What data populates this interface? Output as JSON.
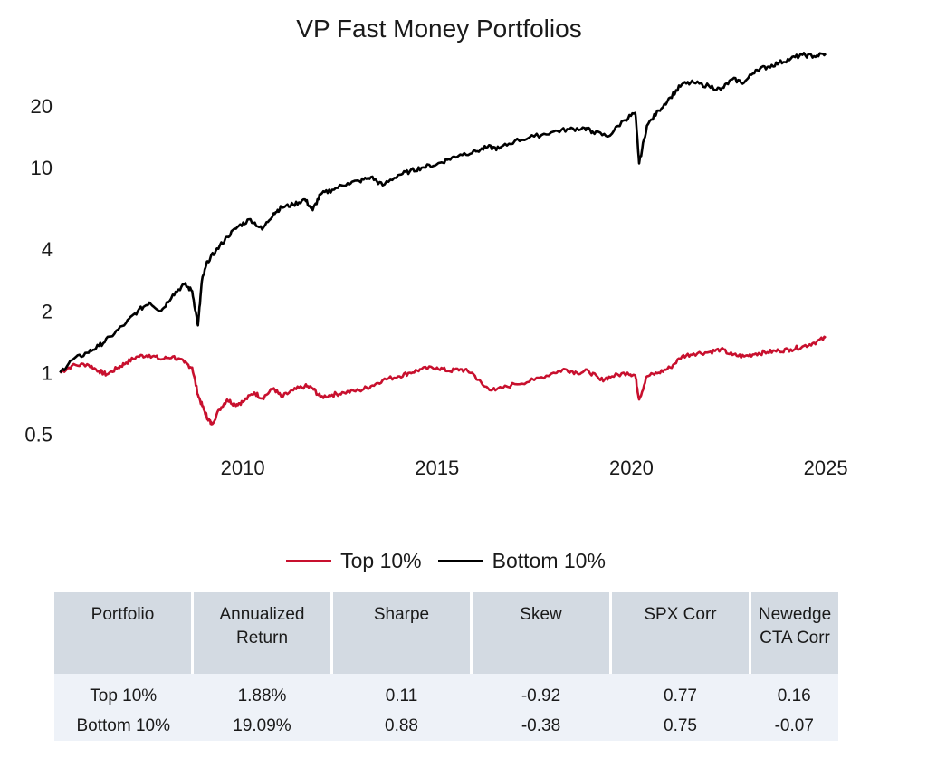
{
  "chart_data": {
    "type": "line",
    "title": "VP Fast Money Portfolios",
    "xlabel": "",
    "ylabel": "",
    "y_scale": "log",
    "xlim": [
      2005.2,
      2025.3
    ],
    "ylim": [
      0.45,
      35
    ],
    "x_ticks": [
      2010,
      2015,
      2020,
      2025
    ],
    "y_ticks": [
      0.5,
      1,
      2,
      4,
      10,
      20
    ],
    "grid": false,
    "legend_position": "bottom",
    "series": [
      {
        "name": "Top 10%",
        "color": "#c8102e",
        "x": [
          2005.3,
          2005.6,
          2006.0,
          2006.3,
          2006.5,
          2006.8,
          2007.0,
          2007.3,
          2007.6,
          2007.9,
          2008.2,
          2008.5,
          2008.7,
          2008.85,
          2009.0,
          2009.1,
          2009.2,
          2009.4,
          2009.6,
          2009.8,
          2010.0,
          2010.3,
          2010.5,
          2010.8,
          2011.0,
          2011.3,
          2011.6,
          2011.8,
          2012.0,
          2012.3,
          2012.6,
          2013.0,
          2013.3,
          2013.6,
          2014.0,
          2014.3,
          2014.6,
          2015.0,
          2015.3,
          2015.6,
          2015.9,
          2016.2,
          2016.5,
          2017.0,
          2017.5,
          2018.0,
          2018.3,
          2018.6,
          2018.9,
          2019.2,
          2019.5,
          2019.9,
          2020.1,
          2020.2,
          2020.4,
          2020.7,
          2021.0,
          2021.3,
          2021.6,
          2022.0,
          2022.3,
          2022.6,
          2022.9,
          2023.2,
          2023.5,
          2023.8,
          2024.1,
          2024.4,
          2024.7,
          2025.0
        ],
        "y": [
          1.0,
          1.08,
          1.1,
          1.02,
          0.98,
          1.06,
          1.12,
          1.2,
          1.22,
          1.16,
          1.2,
          1.12,
          1.06,
          0.78,
          0.66,
          0.6,
          0.56,
          0.66,
          0.74,
          0.7,
          0.72,
          0.8,
          0.75,
          0.84,
          0.76,
          0.82,
          0.86,
          0.84,
          0.76,
          0.78,
          0.8,
          0.82,
          0.86,
          0.92,
          0.96,
          1.0,
          1.04,
          1.06,
          1.02,
          1.04,
          1.0,
          0.86,
          0.82,
          0.88,
          0.92,
          1.0,
          1.04,
          1.0,
          1.02,
          0.92,
          0.96,
          1.0,
          0.97,
          0.74,
          0.96,
          1.0,
          1.06,
          1.2,
          1.24,
          1.26,
          1.3,
          1.22,
          1.2,
          1.24,
          1.26,
          1.28,
          1.3,
          1.34,
          1.4,
          1.48
        ]
      },
      {
        "name": "Bottom 10%",
        "color": "#000000",
        "x": [
          2005.3,
          2005.6,
          2006.0,
          2006.3,
          2006.6,
          2007.0,
          2007.3,
          2007.6,
          2007.9,
          2008.2,
          2008.5,
          2008.7,
          2008.85,
          2008.95,
          2009.1,
          2009.3,
          2009.6,
          2009.9,
          2010.2,
          2010.5,
          2010.8,
          2011.0,
          2011.3,
          2011.6,
          2011.8,
          2012.0,
          2012.3,
          2012.7,
          2013.0,
          2013.3,
          2013.6,
          2014.0,
          2014.3,
          2014.6,
          2015.0,
          2015.3,
          2015.6,
          2016.0,
          2016.3,
          2016.6,
          2017.0,
          2017.5,
          2018.0,
          2018.4,
          2018.8,
          2019.0,
          2019.4,
          2019.8,
          2020.1,
          2020.2,
          2020.4,
          2020.7,
          2021.0,
          2021.3,
          2021.6,
          2022.0,
          2022.3,
          2022.6,
          2022.9,
          2023.2,
          2023.5,
          2023.8,
          2024.1,
          2024.4,
          2024.7,
          2025.0
        ],
        "y": [
          1.0,
          1.15,
          1.25,
          1.35,
          1.5,
          1.75,
          2.0,
          2.2,
          2.0,
          2.4,
          2.7,
          2.5,
          1.7,
          2.8,
          3.5,
          3.9,
          4.6,
          5.2,
          5.6,
          5.0,
          6.0,
          6.4,
          6.6,
          7.0,
          6.2,
          7.4,
          7.8,
          8.4,
          8.6,
          9.0,
          8.2,
          9.2,
          9.6,
          10.0,
          10.4,
          11.0,
          11.6,
          12.0,
          12.6,
          12.4,
          13.5,
          14.2,
          15.0,
          15.4,
          15.6,
          15.0,
          14.2,
          17.0,
          18.5,
          10.5,
          16.0,
          19.0,
          22.0,
          25.5,
          26.0,
          25.0,
          24.0,
          27.0,
          26.0,
          30.0,
          31.0,
          32.5,
          34.0,
          35.5,
          35.0,
          36.0
        ]
      }
    ]
  },
  "table": {
    "headers": [
      "Portfolio",
      "Annualized Return",
      "Sharpe",
      "Skew",
      "SPX Corr",
      "Newedge CTA Corr"
    ],
    "rows": [
      [
        "Top 10%",
        "1.88%",
        "0.11",
        "-0.92",
        "0.77",
        "0.16"
      ],
      [
        "Bottom 10%",
        "19.09%",
        "0.88",
        "-0.38",
        "0.75",
        "-0.07"
      ]
    ]
  }
}
